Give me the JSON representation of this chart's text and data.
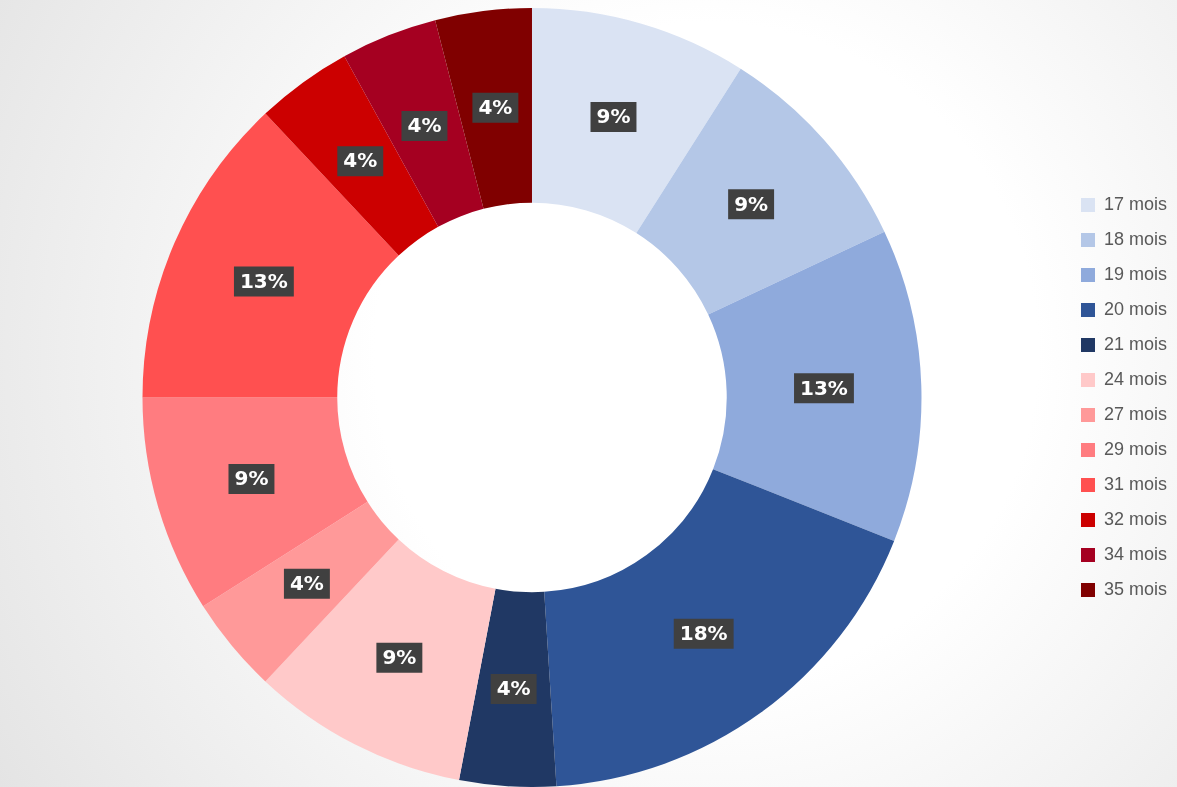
{
  "chart_data": {
    "type": "donut",
    "categories": [
      "17 mois",
      "18 mois",
      "19 mois",
      "20 mois",
      "21 mois",
      "24 mois",
      "27 mois",
      "29 mois",
      "31 mois",
      "32 mois",
      "34 mois",
      "35 mois"
    ],
    "values": [
      9,
      9,
      13,
      18,
      4,
      9,
      4,
      9,
      13,
      4,
      4,
      4
    ],
    "colors": [
      "#dae3f3",
      "#b4c7e7",
      "#8faadc",
      "#2f5597",
      "#203864",
      "#ffc9c9",
      "#ff9999",
      "#ff7c80",
      "#ff5050",
      "#cc0000",
      "#a50021",
      "#800000"
    ],
    "value_labels": [
      "9%",
      "9%",
      "13%",
      "18%",
      "4%",
      "9%",
      "4%",
      "9%",
      "13%",
      "4%",
      "4%",
      "4%"
    ],
    "legend": "right"
  }
}
